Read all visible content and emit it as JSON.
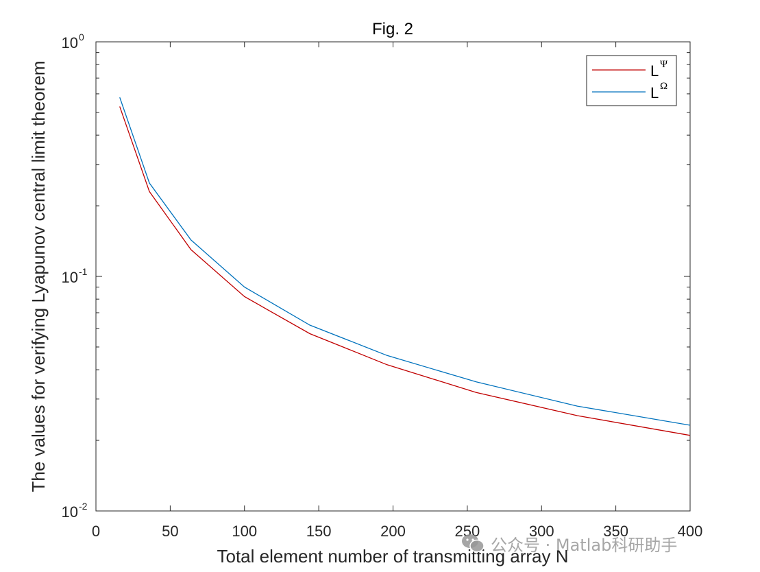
{
  "chart_data": {
    "type": "line",
    "title": "Fig. 2",
    "xlabel": "Total element number of transmitting array N",
    "ylabel": "The values for verifying Lyapunov central limit theorem",
    "xlim": [
      0,
      400
    ],
    "ylim": [
      0.01,
      1
    ],
    "y_scale": "log",
    "x_ticks": [
      "0",
      "50",
      "100",
      "150",
      "200",
      "250",
      "300",
      "350",
      "400"
    ],
    "y_ticks": [
      {
        "base": "10",
        "exp": "-2"
      },
      {
        "base": "10",
        "exp": "-1"
      },
      {
        "base": "10",
        "exp": "0"
      }
    ],
    "grid": false,
    "legend_position": "top-right",
    "series": [
      {
        "name": "L",
        "superscript": "Ψ",
        "color": "#c00000",
        "x": [
          16,
          36,
          64,
          100,
          144,
          196,
          256,
          324,
          400
        ],
        "y": [
          0.53,
          0.23,
          0.13,
          0.082,
          0.057,
          0.042,
          0.032,
          0.0255,
          0.021
        ]
      },
      {
        "name": "L",
        "superscript": "Ω",
        "color": "#0072bd",
        "x": [
          16,
          36,
          64,
          100,
          144,
          196,
          256,
          324,
          400
        ],
        "y": [
          0.58,
          0.25,
          0.143,
          0.09,
          0.062,
          0.046,
          0.0355,
          0.028,
          0.0232
        ]
      }
    ]
  },
  "watermark": {
    "icon": "wechat-icon",
    "text": "公众号 · Matlab科研助手"
  }
}
